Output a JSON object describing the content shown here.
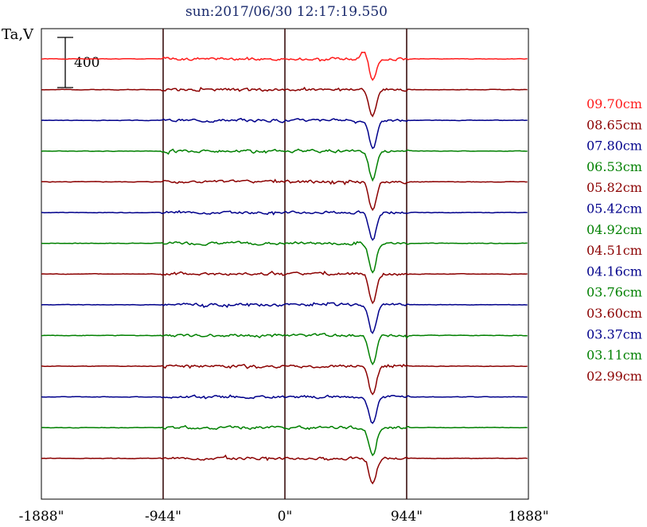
{
  "chart_data": {
    "type": "line",
    "title": "sun:2017/06/30 12:17:19.550",
    "ylabel": "Ta,V",
    "scale_bar_label": "400",
    "scale_bar_value": 400,
    "xlim": [
      -1888,
      1888
    ],
    "xticks": [
      -1888,
      -944,
      0,
      944,
      1888
    ],
    "xtick_labels": [
      "-1888\"",
      "-944\"",
      "0\"",
      "944\"",
      "1888\""
    ],
    "vlines": [
      -944,
      0,
      944
    ],
    "series": [
      {
        "name": "09.70cm",
        "color": "#ff1a1a",
        "dip_depth": 300,
        "seed": 1
      },
      {
        "name": "08.65cm",
        "color": "#8b0000",
        "dip_depth": 350,
        "seed": 2
      },
      {
        "name": "07.80cm",
        "color": "#00008b",
        "dip_depth": 380,
        "seed": 3
      },
      {
        "name": "06.53cm",
        "color": "#008000",
        "dip_depth": 380,
        "seed": 4
      },
      {
        "name": "05.82cm",
        "color": "#8b0000",
        "dip_depth": 370,
        "seed": 5
      },
      {
        "name": "05.42cm",
        "color": "#00008b",
        "dip_depth": 360,
        "seed": 6
      },
      {
        "name": "04.92cm",
        "color": "#008000",
        "dip_depth": 380,
        "seed": 7
      },
      {
        "name": "04.51cm",
        "color": "#8b0000",
        "dip_depth": 370,
        "seed": 8
      },
      {
        "name": "04.16cm",
        "color": "#00008b",
        "dip_depth": 380,
        "seed": 9
      },
      {
        "name": "03.76cm",
        "color": "#008000",
        "dip_depth": 370,
        "seed": 10
      },
      {
        "name": "03.60cm",
        "color": "#8b0000",
        "dip_depth": 390,
        "seed": 11
      },
      {
        "name": "03.37cm",
        "color": "#00008b",
        "dip_depth": 380,
        "seed": 12
      },
      {
        "name": "03.11cm",
        "color": "#008000",
        "dip_depth": 370,
        "seed": 13
      },
      {
        "name": "02.99cm",
        "color": "#8b0000",
        "dip_depth": 330,
        "seed": 14
      }
    ]
  }
}
